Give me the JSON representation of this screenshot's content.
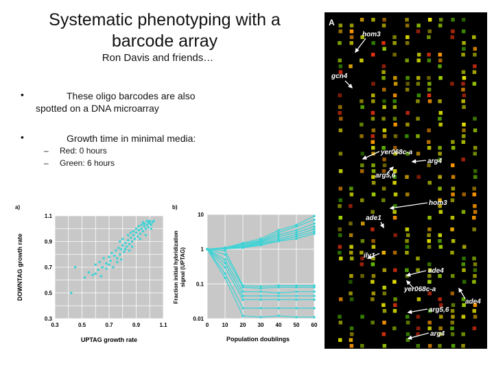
{
  "slide": {
    "title_line1": "Systematic phenotyping with a",
    "title_line2": "barcode array",
    "subtitle": "Ron Davis and friends…",
    "bullet1_line1": "These oligo barcodes are also",
    "bullet1_line2": "spotted on a DNA microarray",
    "bullet2": "Growth time in minimal media:",
    "sub1": "Red: 0 hours",
    "sub2": "Green: 6 hours"
  },
  "chart_data": [
    {
      "type": "scatter",
      "panel_label": "a)",
      "xlabel": "UPTAG growth rate",
      "ylabel": "DOWNTAG growth rate",
      "xlim": [
        0.3,
        1.1
      ],
      "ylim": [
        0.3,
        1.1
      ],
      "x_ticks": [
        "0.3",
        "0.5",
        "0.7",
        "0.9",
        "1.1"
      ],
      "y_ticks": [
        "0.3",
        "0.5",
        "0.7",
        "0.9",
        "1.1"
      ],
      "color": "#3ed3d6",
      "points": [
        [
          0.42,
          0.5
        ],
        [
          0.45,
          0.7
        ],
        [
          0.52,
          0.62
        ],
        [
          0.55,
          0.66
        ],
        [
          0.58,
          0.64
        ],
        [
          0.6,
          0.72
        ],
        [
          0.62,
          0.68
        ],
        [
          0.63,
          0.74
        ],
        [
          0.65,
          0.7
        ],
        [
          0.66,
          0.77
        ],
        [
          0.68,
          0.73
        ],
        [
          0.7,
          0.78
        ],
        [
          0.71,
          0.75
        ],
        [
          0.72,
          0.81
        ],
        [
          0.73,
          0.7
        ],
        [
          0.74,
          0.79
        ],
        [
          0.75,
          0.83
        ],
        [
          0.76,
          0.77
        ],
        [
          0.77,
          0.85
        ],
        [
          0.78,
          0.8
        ],
        [
          0.79,
          0.84
        ],
        [
          0.8,
          0.87
        ],
        [
          0.81,
          0.82
        ],
        [
          0.82,
          0.89
        ],
        [
          0.83,
          0.86
        ],
        [
          0.84,
          0.91
        ],
        [
          0.85,
          0.88
        ],
        [
          0.86,
          0.93
        ],
        [
          0.87,
          0.9
        ],
        [
          0.88,
          0.95
        ],
        [
          0.89,
          0.92
        ],
        [
          0.9,
          0.97
        ],
        [
          0.91,
          0.94
        ],
        [
          0.92,
          0.99
        ],
        [
          0.93,
          0.96
        ],
        [
          0.94,
          1.0
        ],
        [
          0.95,
          0.98
        ],
        [
          0.96,
          1.02
        ],
        [
          0.97,
          1.0
        ],
        [
          0.98,
          1.03
        ],
        [
          0.99,
          1.01
        ],
        [
          1.0,
          1.04
        ],
        [
          1.0,
          1.06
        ],
        [
          1.01,
          1.03
        ],
        [
          1.02,
          1.05
        ],
        [
          0.98,
          1.06
        ],
        [
          0.96,
          1.04
        ],
        [
          0.94,
          1.03
        ],
        [
          0.92,
          1.02
        ],
        [
          0.9,
          1.0
        ],
        [
          0.88,
          0.98
        ],
        [
          0.86,
          0.97
        ],
        [
          0.84,
          0.95
        ],
        [
          0.8,
          0.92
        ],
        [
          0.78,
          0.9
        ],
        [
          0.82,
          0.84
        ],
        [
          0.7,
          0.72
        ],
        [
          0.68,
          0.69
        ],
        [
          0.64,
          0.63
        ],
        [
          0.6,
          0.65
        ],
        [
          0.76,
          0.74
        ],
        [
          0.79,
          0.76
        ],
        [
          0.85,
          0.83
        ],
        [
          0.87,
          0.86
        ],
        [
          0.93,
          0.92
        ],
        [
          0.97,
          0.95
        ],
        [
          1.01,
          1.0
        ],
        [
          0.99,
          1.05
        ],
        [
          1.03,
          1.06
        ],
        [
          0.95,
          1.05
        ]
      ]
    },
    {
      "type": "line",
      "panel_label": "b)",
      "xlabel": "Population doublings",
      "ylabel_line1": "Fraction initial hybridization",
      "ylabel_line2": "signal (UPTAG)",
      "x_ticks": [
        "0",
        "10",
        "20",
        "30",
        "40",
        "50",
        "60"
      ],
      "x": [
        0,
        10,
        20,
        30,
        40,
        50,
        60
      ],
      "y_ticks": [
        "10",
        "1",
        "0.1",
        "0.01"
      ],
      "y_scale": "log",
      "ylim": [
        0.01,
        10
      ],
      "color": "#3ed3d6",
      "series": [
        {
          "values": [
            1,
            1.1,
            1.5,
            2,
            3.5,
            5,
            9
          ]
        },
        {
          "values": [
            1,
            1.1,
            1.4,
            1.8,
            3,
            4.5,
            7
          ]
        },
        {
          "values": [
            1,
            1.05,
            1.3,
            1.7,
            2.6,
            3.5,
            5.5
          ]
        },
        {
          "values": [
            1,
            1.05,
            1.2,
            1.6,
            2.3,
            3,
            4.5
          ]
        },
        {
          "values": [
            1,
            1.03,
            1.15,
            1.5,
            2,
            2.6,
            3.8
          ]
        },
        {
          "values": [
            1,
            1.02,
            1.1,
            1.4,
            1.8,
            2.3,
            3.2
          ]
        },
        {
          "values": [
            1,
            1.02,
            1.1,
            1.3,
            1.7,
            2,
            2.8
          ]
        },
        {
          "values": [
            1,
            0.9,
            0.09,
            0.085,
            0.09,
            0.09,
            0.09
          ]
        },
        {
          "values": [
            1,
            0.7,
            0.08,
            0.075,
            0.08,
            0.08,
            0.08
          ]
        },
        {
          "values": [
            1,
            0.5,
            0.06,
            0.06,
            0.055,
            0.06,
            0.06
          ]
        },
        {
          "values": [
            1,
            0.4,
            0.045,
            0.045,
            0.045,
            0.045,
            0.045
          ]
        },
        {
          "values": [
            1,
            0.3,
            0.035,
            0.035,
            0.035,
            0.035,
            0.035
          ]
        },
        {
          "values": [
            1,
            0.2,
            0.02,
            0.02,
            0.02,
            0.02,
            0.02
          ]
        },
        {
          "values": [
            1,
            0.15,
            0.012,
            0.011,
            0.012,
            0.011,
            0.011
          ]
        }
      ]
    }
  ],
  "microarray": {
    "panel_label": "A",
    "labels": {
      "hom3_top": "hom3",
      "gcn4": "gcn4",
      "yer068c_a_top": "yer068c-a",
      "arg4_top": "arg4",
      "arg56_top": "arg5,6",
      "hom3_bottom": "hom3",
      "ade1": "ade1",
      "ilv1": "ilv1",
      "ade4_mid": "ade4",
      "yer068c_a_bottom": "yer068c-a",
      "ade4_right": "ade4",
      "arg56_bottom": "arg5,6",
      "arg4_bottom": "arg4"
    }
  }
}
